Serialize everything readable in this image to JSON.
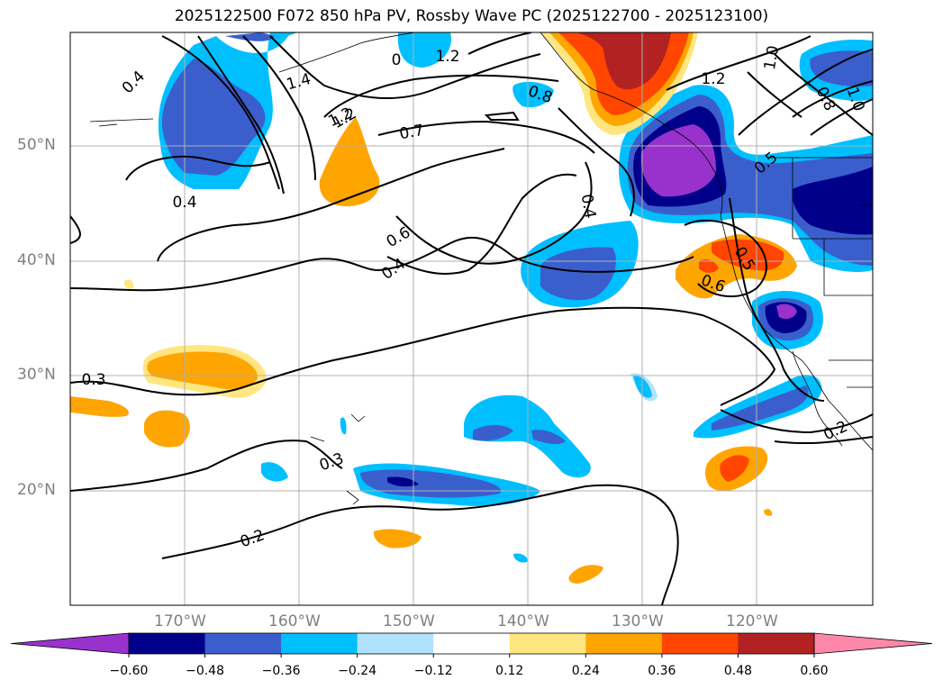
{
  "title": "2025122500 F072 850 hPa PV, Rossby Wave PC (2025122700 - 2025123100)",
  "map": {
    "lat_labels": [
      "50°N",
      "40°N",
      "30°N",
      "20°N"
    ],
    "lon_labels": [
      "170°W",
      "160°W",
      "150°W",
      "140°W",
      "130°W",
      "120°W"
    ],
    "contour_labels": [
      "0.4",
      "1.4",
      "1.2",
      "0",
      "1.2",
      "0.8",
      "1.2",
      "1.0",
      "0.8",
      "1.0",
      "1.2",
      "0.7",
      "0.4",
      "0.4",
      "0.5",
      "0.6",
      "0.4",
      "0.5",
      "0.6",
      "0.3",
      "0.3",
      "0.2",
      "0.2"
    ],
    "shading_colors": {
      "purple": "#9932cc",
      "navy": "#00008b",
      "royal_blue": "#3a5fcd",
      "deep_sky_blue": "#00bfff",
      "light_blue": "#b0e2ff",
      "light_yellow": "#ffe680",
      "orange": "#ffa500",
      "orange_red": "#ff4500",
      "firebrick": "#b22222",
      "pink": "#ff88aa"
    }
  },
  "colorbar": {
    "ticks": [
      "−0.60",
      "−0.48",
      "−0.36",
      "−0.24",
      "−0.12",
      "0.12",
      "0.24",
      "0.36",
      "0.48",
      "0.60"
    ],
    "colors": [
      "#9932cc",
      "#00008b",
      "#3a5fcd",
      "#00bfff",
      "#b0e2ff",
      "#ffffff",
      "#ffe680",
      "#ffa500",
      "#ff4500",
      "#b22222",
      "#ff88aa"
    ]
  }
}
